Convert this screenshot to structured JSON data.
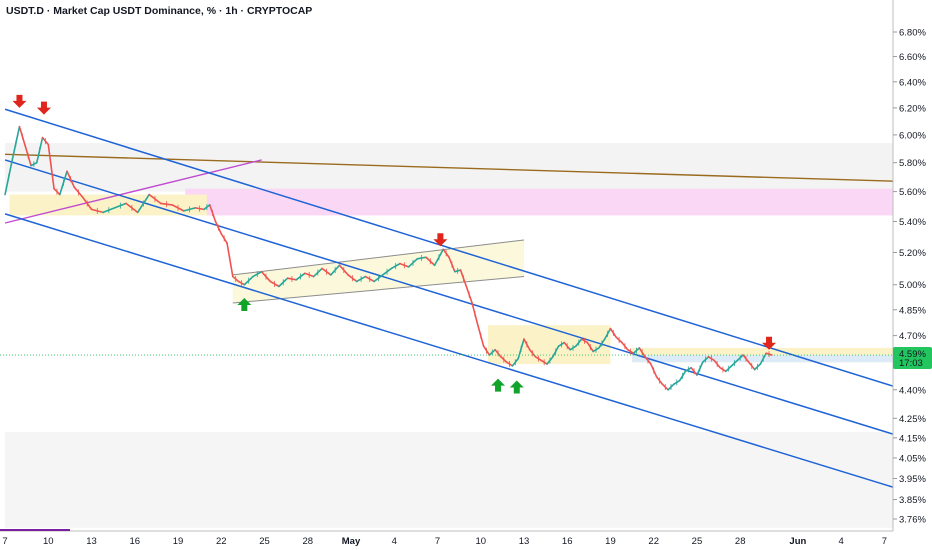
{
  "chart_data": {
    "type": "line",
    "title": "USDT.D · Market Cap USDT Dominance, % · 1h · CRYPTOCAP",
    "symbol": "USDT.D",
    "timeframe": "1h",
    "exchange": "CRYPTOCAP",
    "y_axis": {
      "scale": "log",
      "range": [
        3.72,
        6.95
      ],
      "tick_labels": [
        "6.80%",
        "6.60%",
        "6.40%",
        "6.20%",
        "6.00%",
        "5.80%",
        "5.60%",
        "5.40%",
        "5.20%",
        "5.00%",
        "4.85%",
        "4.70%",
        "4.55%",
        "4.40%",
        "4.25%",
        "4.15%",
        "4.05%",
        "3.95%",
        "3.85%",
        "3.76%"
      ],
      "tick_values": [
        6.8,
        6.6,
        6.4,
        6.2,
        6.0,
        5.8,
        5.6,
        5.4,
        5.2,
        5.0,
        4.85,
        4.7,
        4.55,
        4.4,
        4.25,
        4.15,
        4.05,
        3.95,
        3.85,
        3.76
      ]
    },
    "x_axis": {
      "range_days": [
        0,
        31.2
      ],
      "tick_labels": [
        "7",
        "10",
        "13",
        "16",
        "19",
        "22",
        "25",
        "28",
        "May",
        "4",
        "7",
        "10",
        "13",
        "16",
        "19",
        "22",
        "25",
        "28",
        "Jun",
        "4",
        "7"
      ],
      "tick_days": [
        0.35,
        3.35,
        6.35,
        9.35,
        12.35,
        15.35,
        18.35,
        21.35,
        24.35,
        27.35,
        30.35,
        33.35,
        36.35,
        39.35,
        42.35,
        45.35,
        48.35,
        51.35,
        55.35,
        58.35,
        61.35
      ],
      "bold_labels": [
        "May",
        "Jun"
      ]
    },
    "series": [
      {
        "type": "line",
        "color": "#26a69a",
        "points": [
          [
            0.0,
            5.58
          ],
          [
            0.5,
            5.82
          ],
          [
            1.0,
            6.06
          ],
          [
            1.4,
            5.92
          ],
          [
            1.8,
            5.78
          ],
          [
            2.2,
            5.8
          ],
          [
            2.6,
            5.98
          ],
          [
            3.0,
            5.93
          ],
          [
            3.4,
            5.62
          ],
          [
            3.8,
            5.58
          ],
          [
            4.3,
            5.74
          ],
          [
            4.8,
            5.63
          ],
          [
            5.4,
            5.56
          ],
          [
            6.0,
            5.48
          ],
          [
            6.8,
            5.46
          ],
          [
            7.6,
            5.49
          ],
          [
            8.4,
            5.52
          ],
          [
            9.2,
            5.46
          ],
          [
            10.0,
            5.58
          ],
          [
            10.8,
            5.52
          ],
          [
            11.6,
            5.51
          ],
          [
            12.4,
            5.47
          ],
          [
            13.2,
            5.49
          ],
          [
            13.8,
            5.48
          ],
          [
            14.2,
            5.51
          ],
          [
            14.6,
            5.4
          ],
          [
            15.0,
            5.32
          ],
          [
            15.4,
            5.26
          ],
          [
            15.8,
            5.05
          ],
          [
            16.2,
            5.02
          ],
          [
            16.6,
            5.0
          ],
          [
            17.2,
            5.05
          ],
          [
            17.8,
            5.08
          ],
          [
            18.4,
            5.02
          ],
          [
            19.0,
            4.99
          ],
          [
            19.6,
            5.04
          ],
          [
            20.2,
            5.03
          ],
          [
            20.8,
            5.07
          ],
          [
            21.4,
            5.05
          ],
          [
            22.0,
            5.1
          ],
          [
            22.6,
            5.06
          ],
          [
            23.2,
            5.12
          ],
          [
            23.8,
            5.06
          ],
          [
            24.4,
            5.02
          ],
          [
            25.0,
            5.05
          ],
          [
            25.6,
            5.02
          ],
          [
            26.2,
            5.06
          ],
          [
            26.8,
            5.1
          ],
          [
            27.4,
            5.13
          ],
          [
            28.0,
            5.11
          ],
          [
            28.6,
            5.16
          ],
          [
            29.2,
            5.17
          ],
          [
            29.8,
            5.12
          ],
          [
            30.4,
            5.22
          ],
          [
            30.8,
            5.17
          ],
          [
            31.2,
            5.08
          ],
          [
            31.6,
            5.09
          ],
          [
            32.0,
            4.99
          ],
          [
            32.4,
            4.89
          ],
          [
            32.8,
            4.76
          ],
          [
            33.2,
            4.64
          ],
          [
            33.6,
            4.59
          ],
          [
            34.0,
            4.62
          ],
          [
            34.4,
            4.58
          ],
          [
            34.8,
            4.55
          ],
          [
            35.2,
            4.53
          ],
          [
            35.6,
            4.57
          ],
          [
            36.0,
            4.68
          ],
          [
            36.4,
            4.62
          ],
          [
            36.8,
            4.58
          ],
          [
            37.2,
            4.56
          ],
          [
            37.6,
            4.54
          ],
          [
            38.0,
            4.58
          ],
          [
            38.4,
            4.64
          ],
          [
            38.8,
            4.66
          ],
          [
            39.2,
            4.62
          ],
          [
            39.6,
            4.64
          ],
          [
            40.0,
            4.68
          ],
          [
            40.4,
            4.66
          ],
          [
            40.8,
            4.61
          ],
          [
            41.2,
            4.63
          ],
          [
            41.6,
            4.68
          ],
          [
            42.0,
            4.74
          ],
          [
            42.4,
            4.69
          ],
          [
            42.8,
            4.66
          ],
          [
            43.2,
            4.62
          ],
          [
            43.6,
            4.6
          ],
          [
            44.0,
            4.63
          ],
          [
            44.4,
            4.58
          ],
          [
            44.8,
            4.54
          ],
          [
            45.2,
            4.47
          ],
          [
            45.6,
            4.43
          ],
          [
            46.0,
            4.4
          ],
          [
            46.4,
            4.43
          ],
          [
            46.8,
            4.45
          ],
          [
            47.2,
            4.5
          ],
          [
            47.6,
            4.52
          ],
          [
            48.0,
            4.48
          ],
          [
            48.4,
            4.55
          ],
          [
            48.8,
            4.58
          ],
          [
            49.2,
            4.56
          ],
          [
            49.6,
            4.52
          ],
          [
            50.0,
            4.5
          ],
          [
            50.4,
            4.53
          ],
          [
            50.8,
            4.56
          ],
          [
            51.2,
            4.59
          ],
          [
            51.6,
            4.55
          ],
          [
            52.0,
            4.51
          ],
          [
            52.4,
            4.54
          ],
          [
            52.8,
            4.6
          ],
          [
            53.2,
            4.59
          ]
        ]
      }
    ],
    "last_price": {
      "label": "4.59%",
      "countdown": "17:03",
      "value": 4.59,
      "color": "#22c55e"
    },
    "annotations": {
      "channel_lines": [
        {
          "color": "#1e63d6",
          "p1": [
            0.0,
            6.19
          ],
          "p2": [
            62.0,
            4.41
          ]
        },
        {
          "color": "#1e63d6",
          "p1": [
            0.0,
            5.82
          ],
          "p2": [
            62.0,
            4.16
          ]
        },
        {
          "color": "#1e63d6",
          "p1": [
            0.0,
            5.45
          ],
          "p2": [
            62.0,
            3.9
          ]
        }
      ],
      "trend_lines": [
        {
          "color": "#9a6b1e",
          "p1": [
            0.0,
            5.86
          ],
          "p2": [
            62.0,
            5.67
          ]
        },
        {
          "color": "#c04bd1",
          "p1": [
            0.0,
            5.39
          ],
          "p2": [
            17.8,
            5.82
          ]
        }
      ],
      "rising_channel": {
        "color": "#8c8c8c",
        "fill": "#fbf7d8",
        "upper": {
          "p1": [
            15.8,
            5.06
          ],
          "p2": [
            36.0,
            5.28
          ]
        },
        "lower": {
          "p1": [
            15.8,
            4.89
          ],
          "p2": [
            36.0,
            5.05
          ]
        }
      },
      "zones": [
        {
          "color": "#f3f3f3",
          "x": [
            0,
            62
          ],
          "y": [
            5.6,
            5.94
          ]
        },
        {
          "color": "#f5f5f5",
          "x": [
            0,
            62
          ],
          "y": [
            3.72,
            4.18
          ]
        },
        {
          "color": "#fad8f5",
          "x": [
            12.5,
            62
          ],
          "y": [
            5.44,
            5.62
          ]
        },
        {
          "color": "#fbf3c7",
          "x": [
            0.3,
            14.0
          ],
          "y": [
            5.44,
            5.58
          ]
        },
        {
          "color": "#fbf3c7",
          "x": [
            33.5,
            42.0
          ],
          "y": [
            4.54,
            4.76
          ]
        },
        {
          "color": "#fbf3c7",
          "x": [
            43.5,
            62.0
          ],
          "y": [
            4.55,
            4.63
          ]
        },
        {
          "color": "#dcebf7",
          "x": [
            43.5,
            62.0
          ],
          "y": [
            4.55,
            4.59
          ]
        }
      ],
      "down_arrows": [
        {
          "day": 1.0,
          "value": 6.2
        },
        {
          "day": 2.7,
          "value": 6.15
        },
        {
          "day": 30.2,
          "value": 5.24
        },
        {
          "day": 53.0,
          "value": 4.62
        }
      ],
      "up_arrows": [
        {
          "day": 16.6,
          "value": 4.92
        },
        {
          "day": 34.2,
          "value": 4.46
        },
        {
          "day": 35.5,
          "value": 4.45
        }
      ]
    }
  }
}
